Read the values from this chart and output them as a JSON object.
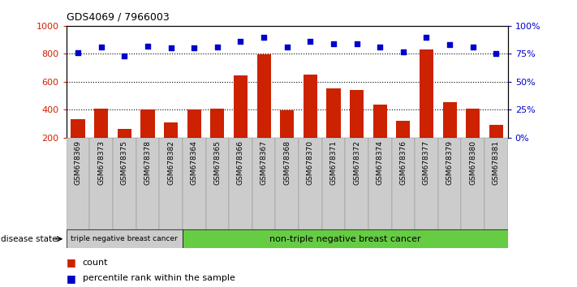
{
  "title": "GDS4069 / 7966003",
  "samples": [
    "GSM678369",
    "GSM678373",
    "GSM678375",
    "GSM678378",
    "GSM678382",
    "GSM678364",
    "GSM678365",
    "GSM678366",
    "GSM678367",
    "GSM678368",
    "GSM678370",
    "GSM678371",
    "GSM678372",
    "GSM678374",
    "GSM678376",
    "GSM678377",
    "GSM678379",
    "GSM678380",
    "GSM678381"
  ],
  "counts": [
    335,
    410,
    265,
    400,
    310,
    400,
    410,
    645,
    795,
    395,
    650,
    555,
    540,
    435,
    320,
    830,
    455,
    410,
    290
  ],
  "percentiles": [
    76,
    81,
    73,
    82,
    80,
    80,
    81,
    86,
    90,
    81,
    86,
    84,
    84,
    81,
    77,
    90,
    83,
    81,
    75
  ],
  "bar_color": "#cc2200",
  "dot_color": "#0000cc",
  "bg_color": "#ffffff",
  "ylim_left": [
    200,
    1000
  ],
  "ylim_right": [
    0,
    100
  ],
  "yticks_left": [
    200,
    400,
    600,
    800,
    1000
  ],
  "yticks_right": [
    0,
    25,
    50,
    75,
    100
  ],
  "ytick_labels_right": [
    "0%",
    "25%",
    "50%",
    "75%",
    "100%"
  ],
  "group1_count": 5,
  "group1_label": "triple negative breast cancer",
  "group2_label": "non-triple negative breast cancer",
  "disease_state_label": "disease state",
  "legend_count_label": "count",
  "legend_pct_label": "percentile rank within the sample",
  "dotted_line_color": "#000000",
  "group1_bg": "#cccccc",
  "group2_bg": "#66cc44",
  "tick_area_bg": "#cccccc"
}
